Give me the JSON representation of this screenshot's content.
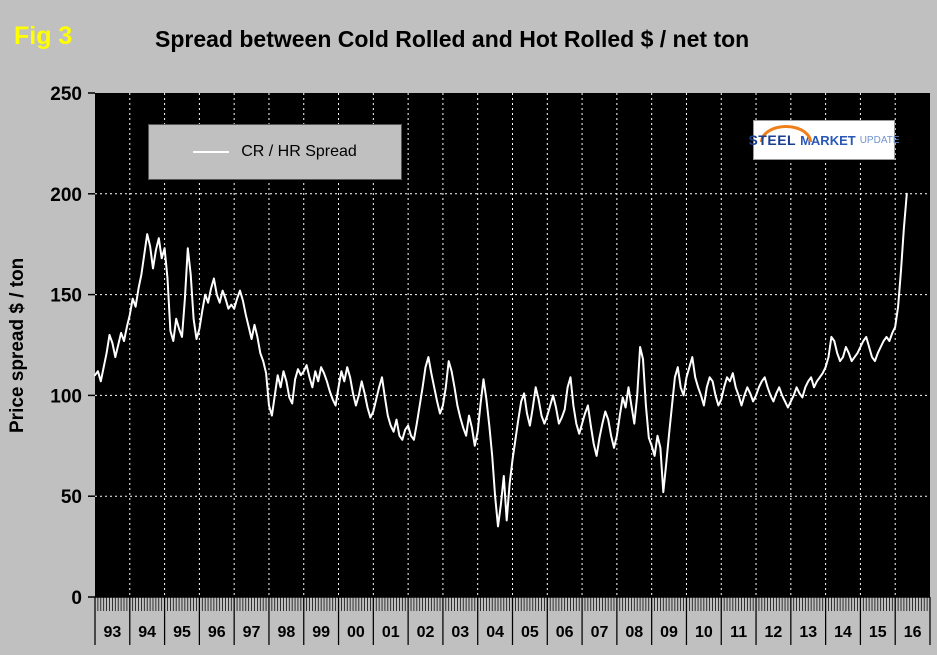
{
  "figure": {
    "fig_label": "Fig 3",
    "title": "Spread between Cold Rolled and Hot Rolled $ / net ton"
  },
  "legend": {
    "label": "CR / HR Spread"
  },
  "logo": {
    "word1": "STEEL",
    "word2": "MARKET",
    "word3": "UPDATE"
  },
  "colors": {
    "page_background": "#c0c0c0",
    "plot_background": "#000000",
    "line": "#ffffff",
    "gridline": "#ffffff",
    "fig_label": "#ffff00",
    "text": "#000000"
  },
  "chart_data": {
    "type": "line",
    "title": "Spread between Cold Rolled and Hot Rolled $ / net ton",
    "xlabel": "",
    "ylabel": "Price spread $ / ton",
    "ylim": [
      0,
      250
    ],
    "yticks": [
      0,
      50,
      100,
      150,
      200,
      250
    ],
    "x_years": [
      "93",
      "94",
      "95",
      "96",
      "97",
      "98",
      "99",
      "00",
      "01",
      "02",
      "03",
      "04",
      "05",
      "06",
      "07",
      "08",
      "09",
      "10",
      "11",
      "12",
      "13",
      "14",
      "15",
      "16"
    ],
    "points_per_year": 12,
    "grid": "dotted-white",
    "legend_position": "top-left",
    "plot_bg": "#000000",
    "series": [
      {
        "name": "CR / HR Spread",
        "color": "#ffffff",
        "values": [
          110,
          112,
          107,
          114,
          121,
          130,
          126,
          119,
          125,
          131,
          127,
          134,
          140,
          148,
          144,
          153,
          160,
          170,
          180,
          174,
          163,
          172,
          178,
          168,
          173,
          158,
          132,
          127,
          138,
          133,
          129,
          148,
          173,
          160,
          138,
          128,
          133,
          142,
          150,
          146,
          153,
          158,
          150,
          146,
          152,
          148,
          143,
          145,
          143,
          148,
          152,
          147,
          140,
          134,
          128,
          135,
          129,
          121,
          117,
          111,
          95,
          90,
          100,
          110,
          104,
          112,
          107,
          99,
          96,
          108,
          113,
          110,
          112,
          115,
          109,
          104,
          112,
          107,
          114,
          111,
          107,
          102,
          98,
          95,
          104,
          112,
          107,
          114,
          109,
          101,
          95,
          100,
          107,
          101,
          94,
          89,
          92,
          98,
          104,
          109,
          99,
          90,
          85,
          82,
          88,
          80,
          78,
          83,
          85,
          80,
          78,
          86,
          95,
          104,
          114,
          119,
          111,
          104,
          97,
          91,
          95,
          104,
          117,
          112,
          104,
          95,
          89,
          84,
          80,
          90,
          84,
          75,
          82,
          96,
          108,
          98,
          85,
          70,
          50,
          35,
          46,
          60,
          38,
          56,
          68,
          78,
          88,
          97,
          101,
          91,
          85,
          94,
          104,
          98,
          90,
          86,
          90,
          95,
          100,
          94,
          86,
          89,
          93,
          104,
          109,
          95,
          86,
          81,
          86,
          91,
          95,
          85,
          76,
          70,
          79,
          86,
          92,
          88,
          80,
          74,
          80,
          90,
          99,
          94,
          104,
          95,
          86,
          100,
          124,
          118,
          95,
          79,
          75,
          70,
          80,
          74,
          52,
          66,
          81,
          95,
          109,
          114,
          104,
          100,
          109,
          114,
          119,
          109,
          104,
          100,
          95,
          104,
          109,
          107,
          100,
          95,
          98,
          104,
          109,
          107,
          111,
          104,
          100,
          95,
          100,
          104,
          101,
          97,
          100,
          104,
          107,
          109,
          104,
          100,
          97,
          101,
          104,
          100,
          97,
          94,
          97,
          100,
          104,
          101,
          99,
          104,
          107,
          109,
          104,
          107,
          109,
          111,
          114,
          119,
          129,
          127,
          121,
          117,
          119,
          124,
          121,
          117,
          119,
          121,
          124,
          127,
          129,
          124,
          119,
          117,
          121,
          124,
          127,
          129,
          127,
          131,
          134,
          144,
          162,
          183,
          200
        ]
      }
    ]
  }
}
